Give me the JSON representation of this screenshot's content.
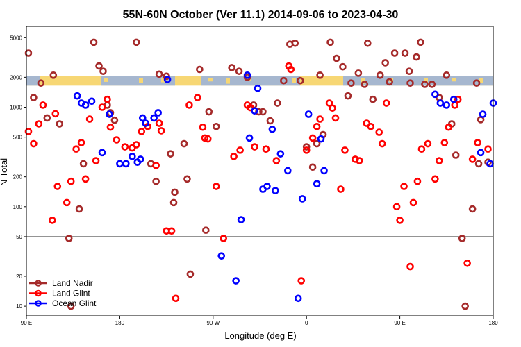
{
  "chart_data": {
    "type": "scatter",
    "title": "55N-60N October (Ver 11.1)   2014-09-06 to 2023-04-30",
    "xlabel": "Longitude (deg E)",
    "ylabel": "N Total",
    "y_scale": "log",
    "ylim": [
      8,
      6500
    ],
    "x_unwrapped_range": [
      90,
      540
    ],
    "x_ticks": [
      {
        "x": 90,
        "label": "90 E"
      },
      {
        "x": 180,
        "label": "180"
      },
      {
        "x": 270,
        "label": "90 W"
      },
      {
        "x": 360,
        "label": "0"
      },
      {
        "x": 450,
        "label": "90 E"
      },
      {
        "x": 540,
        "label": "180"
      }
    ],
    "y_ticks": [
      {
        "y": 10,
        "label": "10"
      },
      {
        "y": 20,
        "label": "20"
      },
      {
        "y": 50,
        "label": "50"
      },
      {
        "y": 100,
        "label": "100"
      },
      {
        "y": 200,
        "label": "200"
      },
      {
        "y": 500,
        "label": "500"
      },
      {
        "y": 1000,
        "label": "1000"
      },
      {
        "y": 2000,
        "label": "2000"
      },
      {
        "y": 5000,
        "label": "5000"
      }
    ],
    "reference_line_y": 50,
    "map_strip_y_range": [
      1650,
      2050
    ],
    "legend_position": "bottom-left",
    "series": [
      {
        "name": "Land Nadir",
        "color": "#a52a2a",
        "points": [
          [
            92,
            3500
          ],
          [
            97,
            1250
          ],
          [
            104,
            1750
          ],
          [
            110,
            780
          ],
          [
            116,
            2100
          ],
          [
            122,
            680
          ],
          [
            131,
            48
          ],
          [
            133,
            10
          ],
          [
            141,
            95
          ],
          [
            145,
            270
          ],
          [
            155,
            4500
          ],
          [
            160,
            2600
          ],
          [
            164,
            2300
          ],
          [
            168,
            1050
          ],
          [
            171,
            880
          ],
          [
            175,
            740
          ],
          [
            196,
            4500
          ],
          [
            210,
            270
          ],
          [
            215,
            180
          ],
          [
            218,
            2150
          ],
          [
            225,
            2050
          ],
          [
            229,
            340
          ],
          [
            232,
            110
          ],
          [
            233,
            140
          ],
          [
            242,
            430
          ],
          [
            245,
            190
          ],
          [
            248,
            21
          ],
          [
            257,
            2400
          ],
          [
            263,
            58
          ],
          [
            266,
            900
          ],
          [
            273,
            640
          ],
          [
            288,
            2500
          ],
          [
            295,
            2300
          ],
          [
            303,
            2000
          ],
          [
            309,
            1050
          ],
          [
            314,
            900
          ],
          [
            318,
            900
          ],
          [
            325,
            730
          ],
          [
            332,
            1100
          ],
          [
            338,
            1850
          ],
          [
            344,
            4300
          ],
          [
            349,
            4400
          ],
          [
            354,
            1850
          ],
          [
            360,
            400
          ],
          [
            366,
            250
          ],
          [
            370,
            430
          ],
          [
            373,
            2100
          ],
          [
            376,
            530
          ],
          [
            383,
            4500
          ],
          [
            389,
            3100
          ],
          [
            395,
            2550
          ],
          [
            400,
            1300
          ],
          [
            403,
            1750
          ],
          [
            410,
            2200
          ],
          [
            416,
            1700
          ],
          [
            419,
            4400
          ],
          [
            424,
            1200
          ],
          [
            431,
            2100
          ],
          [
            436,
            2800
          ],
          [
            440,
            1800
          ],
          [
            445,
            3500
          ],
          [
            455,
            3500
          ],
          [
            459,
            2300
          ],
          [
            460,
            1750
          ],
          [
            466,
            3200
          ],
          [
            470,
            4500
          ],
          [
            474,
            1700
          ],
          [
            481,
            1700
          ],
          [
            488,
            1250
          ],
          [
            495,
            2100
          ],
          [
            500,
            680
          ],
          [
            504,
            330
          ],
          [
            510,
            48
          ],
          [
            513,
            10
          ],
          [
            520,
            95
          ],
          [
            524,
            1750
          ],
          [
            526,
            270
          ],
          [
            528,
            750
          ],
          [
            535,
            280
          ]
        ]
      },
      {
        "name": "Land Glint",
        "color": "#ff0000",
        "points": [
          [
            92,
            570
          ],
          [
            97,
            430
          ],
          [
            102,
            680
          ],
          [
            106,
            1050
          ],
          [
            115,
            73
          ],
          [
            118,
            860
          ],
          [
            120,
            160
          ],
          [
            129,
            110
          ],
          [
            133,
            180
          ],
          [
            138,
            380
          ],
          [
            143,
            440
          ],
          [
            147,
            190
          ],
          [
            151,
            760
          ],
          [
            157,
            290
          ],
          [
            163,
            1000
          ],
          [
            168,
            1200
          ],
          [
            171,
            630
          ],
          [
            177,
            470
          ],
          [
            185,
            400
          ],
          [
            192,
            390
          ],
          [
            196,
            420
          ],
          [
            201,
            570
          ],
          [
            207,
            640
          ],
          [
            215,
            260
          ],
          [
            218,
            690
          ],
          [
            220,
            580
          ],
          [
            225,
            57
          ],
          [
            230,
            57
          ],
          [
            234,
            12
          ],
          [
            247,
            1050
          ],
          [
            255,
            1250
          ],
          [
            260,
            630
          ],
          [
            262,
            490
          ],
          [
            265,
            480
          ],
          [
            273,
            160
          ],
          [
            280,
            48
          ],
          [
            290,
            320
          ],
          [
            296,
            370
          ],
          [
            303,
            1050
          ],
          [
            306,
            990
          ],
          [
            310,
            400
          ],
          [
            321,
            380
          ],
          [
            331,
            290
          ],
          [
            343,
            2600
          ],
          [
            345,
            2400
          ],
          [
            355,
            18
          ],
          [
            360,
            370
          ],
          [
            366,
            490
          ],
          [
            370,
            640
          ],
          [
            373,
            760
          ],
          [
            382,
            1100
          ],
          [
            385,
            980
          ],
          [
            388,
            780
          ],
          [
            393,
            150
          ],
          [
            397,
            370
          ],
          [
            407,
            300
          ],
          [
            411,
            290
          ],
          [
            418,
            690
          ],
          [
            422,
            640
          ],
          [
            430,
            560
          ],
          [
            433,
            430
          ],
          [
            437,
            1100
          ],
          [
            447,
            100
          ],
          [
            450,
            73
          ],
          [
            454,
            160
          ],
          [
            460,
            25
          ],
          [
            463,
            110
          ],
          [
            467,
            180
          ],
          [
            471,
            380
          ],
          [
            477,
            430
          ],
          [
            484,
            190
          ],
          [
            488,
            290
          ],
          [
            493,
            440
          ],
          [
            497,
            630
          ],
          [
            503,
            1050
          ],
          [
            506,
            1200
          ],
          [
            515,
            27
          ],
          [
            520,
            300
          ],
          [
            525,
            440
          ],
          [
            535,
            380
          ]
        ]
      },
      {
        "name": "Ocean Glint",
        "color": "#0000ff",
        "points": [
          [
            139,
            1300
          ],
          [
            143,
            1100
          ],
          [
            147,
            1050
          ],
          [
            153,
            1150
          ],
          [
            163,
            350
          ],
          [
            170,
            850
          ],
          [
            180,
            270
          ],
          [
            186,
            270
          ],
          [
            192,
            320
          ],
          [
            197,
            280
          ],
          [
            200,
            300
          ],
          [
            202,
            780
          ],
          [
            205,
            690
          ],
          [
            213,
            780
          ],
          [
            217,
            880
          ],
          [
            226,
            1900
          ],
          [
            278,
            32
          ],
          [
            292,
            18
          ],
          [
            297,
            74
          ],
          [
            303,
            2100
          ],
          [
            305,
            490
          ],
          [
            310,
            920
          ],
          [
            313,
            1550
          ],
          [
            318,
            150
          ],
          [
            322,
            160
          ],
          [
            327,
            600
          ],
          [
            330,
            145
          ],
          [
            335,
            340
          ],
          [
            342,
            230
          ],
          [
            352,
            12
          ],
          [
            356,
            120
          ],
          [
            362,
            850
          ],
          [
            370,
            170
          ],
          [
            374,
            480
          ],
          [
            377,
            230
          ],
          [
            484,
            1350
          ],
          [
            489,
            1100
          ],
          [
            495,
            1050
          ],
          [
            502,
            1200
          ],
          [
            528,
            350
          ],
          [
            530,
            850
          ],
          [
            537,
            270
          ],
          [
            540,
            1100
          ]
        ]
      }
    ]
  }
}
